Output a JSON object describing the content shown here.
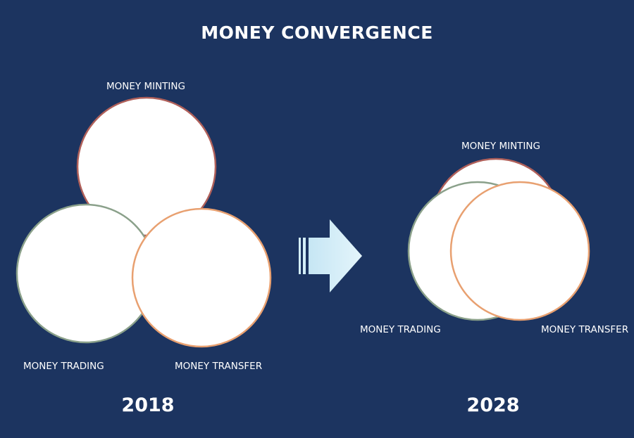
{
  "title": "MONEY CONVERGENCE",
  "panels": {
    "before": {
      "year": "2018",
      "minting": "MONEY MINTING",
      "trading": "MONEY TRADING",
      "transfer": "MONEY TRANSFER"
    },
    "after": {
      "year": "2028",
      "minting": "MONEY MINTING",
      "trading": "MONEY TRADING",
      "transfer": "MONEY TRANSFER"
    }
  },
  "colors": {
    "background": "#1c3460",
    "circle_fill": "#ffffff",
    "minting_stroke": "#b0605a",
    "trading_stroke": "#8aa08a",
    "transfer_stroke": "#e8a070",
    "arrow_fill": "#d3eef8"
  },
  "icons": {
    "arrow": "right-arrow-icon"
  }
}
